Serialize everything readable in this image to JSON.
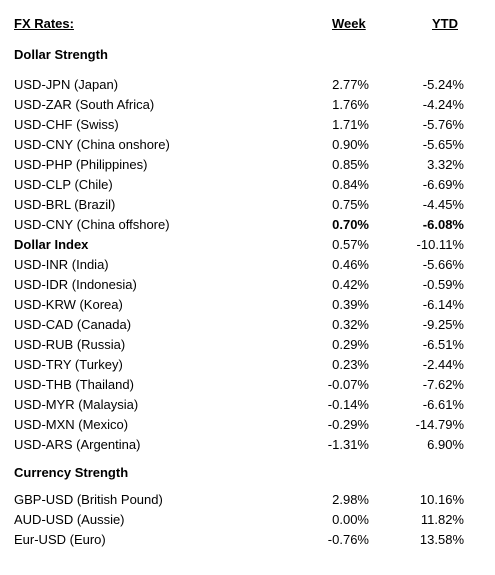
{
  "header": {
    "title": "FX Rates:",
    "week": "Week",
    "ytd": "YTD"
  },
  "sections": {
    "dollar": "Dollar Strength",
    "currency": "Currency Strength"
  },
  "dollar_rows": [
    {
      "label": "USD-JPN (Japan)",
      "week": "2.77%",
      "ytd": "-5.24%"
    },
    {
      "label": "USD-ZAR (South Africa)",
      "week": "1.76%",
      "ytd": "-4.24%"
    },
    {
      "label": "USD-CHF (Swiss)",
      "week": "1.71%",
      "ytd": "-5.76%"
    },
    {
      "label": "USD-CNY (China onshore)",
      "week": "0.90%",
      "ytd": "-5.65%"
    },
    {
      "label": "USD-PHP (Philippines)",
      "week": "0.85%",
      "ytd": "3.32%"
    },
    {
      "label": "USD-CLP (Chile)",
      "week": "0.84%",
      "ytd": "-6.69%"
    },
    {
      "label": "USD-BRL (Brazil)",
      "week": "0.75%",
      "ytd": "-4.45%"
    },
    {
      "label": "USD-CNY (China offshore)",
      "week": "0.70%",
      "ytd": "-6.08%"
    },
    {
      "label": "Dollar Index",
      "week": "0.57%",
      "ytd": "-10.11%"
    },
    {
      "label": "USD-INR (India)",
      "week": "0.46%",
      "ytd": "-5.66%"
    },
    {
      "label": "USD-IDR (Indonesia)",
      "week": "0.42%",
      "ytd": "-0.59%"
    },
    {
      "label": "USD-KRW (Korea)",
      "week": "0.39%",
      "ytd": "-6.14%"
    },
    {
      "label": "USD-CAD (Canada)",
      "week": "0.32%",
      "ytd": "-9.25%"
    },
    {
      "label": "USD-RUB (Russia)",
      "week": "0.29%",
      "ytd": "-6.51%"
    },
    {
      "label": "USD-TRY (Turkey)",
      "week": "0.23%",
      "ytd": "-2.44%"
    },
    {
      "label": "USD-THB  (Thailand)",
      "week": "-0.07%",
      "ytd": "-7.62%"
    },
    {
      "label": "USD-MYR (Malaysia)",
      "week": "-0.14%",
      "ytd": "-6.61%"
    },
    {
      "label": "USD-MXN  (Mexico)",
      "week": "-0.29%",
      "ytd": "-14.79%"
    },
    {
      "label": "USD-ARS (Argentina)",
      "week": "-1.31%",
      "ytd": "6.90%"
    }
  ],
  "currency_rows": [
    {
      "label": "GBP-USD (British Pound)",
      "week": "2.98%",
      "ytd": "10.16%"
    },
    {
      "label": "AUD-USD (Aussie)",
      "week": "0.00%",
      "ytd": "11.82%"
    },
    {
      "label": "Eur-USD (Euro)",
      "week": "-0.76%",
      "ytd": "13.58%"
    }
  ]
}
